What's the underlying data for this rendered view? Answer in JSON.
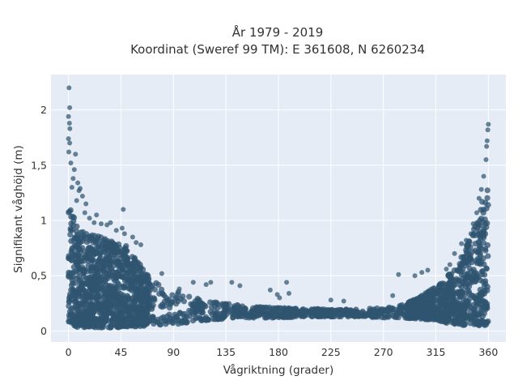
{
  "chart_data": {
    "type": "scatter",
    "title": "År 1979 - 2019",
    "subtitle": "Koordinat (Sweref 99 TM): E 361608, N 6260234",
    "xlabel": "Vågriktning (grader)",
    "ylabel": "Signifikant våghöjd (m)",
    "xlim": [
      -15,
      375
    ],
    "ylim": [
      -0.1,
      2.32
    ],
    "xticks": [
      0,
      45,
      90,
      135,
      180,
      225,
      270,
      315,
      360
    ],
    "xtick_labels": [
      "0",
      "45",
      "90",
      "135",
      "180",
      "225",
      "270",
      "315",
      "360"
    ],
    "yticks": [
      0,
      0.5,
      1,
      1.5,
      2
    ],
    "ytick_labels": [
      "0",
      "0,5",
      "1",
      "1,5",
      "2"
    ],
    "grid": true,
    "marker_color": "#2f5470",
    "background_color": "#e5ecf6",
    "density_profile": {
      "direction": [
        0,
        5,
        10,
        20,
        30,
        40,
        50,
        60,
        70,
        80,
        90,
        100,
        110,
        120,
        135,
        150,
        165,
        180,
        200,
        225,
        250,
        270,
        285,
        300,
        315,
        325,
        335,
        340,
        345,
        350,
        355,
        360
      ],
      "upper_height": [
        1.2,
        1.02,
        0.9,
        0.88,
        0.84,
        0.8,
        0.77,
        0.62,
        0.48,
        0.42,
        0.38,
        0.33,
        0.3,
        0.27,
        0.25,
        0.23,
        0.22,
        0.21,
        0.2,
        0.2,
        0.2,
        0.21,
        0.23,
        0.3,
        0.4,
        0.5,
        0.62,
        0.75,
        0.85,
        1.0,
        1.2,
        1.35
      ],
      "lower_height": [
        0.05,
        0.04,
        0.03,
        0.03,
        0.03,
        0.03,
        0.04,
        0.04,
        0.05,
        0.05,
        0.06,
        0.07,
        0.08,
        0.1,
        0.11,
        0.12,
        0.12,
        0.12,
        0.13,
        0.13,
        0.13,
        0.12,
        0.12,
        0.11,
        0.1,
        0.07,
        0.06,
        0.05,
        0.05,
        0.05,
        0.05,
        0.05
      ]
    },
    "outliers": [
      {
        "x": 0.5,
        "y": 2.2
      },
      {
        "x": 1,
        "y": 2.02
      },
      {
        "x": 0,
        "y": 1.94
      },
      {
        "x": 0.8,
        "y": 1.88
      },
      {
        "x": 1.2,
        "y": 1.83
      },
      {
        "x": 0,
        "y": 1.74
      },
      {
        "x": 1,
        "y": 1.7
      },
      {
        "x": 0.3,
        "y": 1.62
      },
      {
        "x": 2,
        "y": 1.52
      },
      {
        "x": 6,
        "y": 1.6
      },
      {
        "x": 5,
        "y": 1.46
      },
      {
        "x": 4,
        "y": 1.38
      },
      {
        "x": 8,
        "y": 1.34
      },
      {
        "x": 10,
        "y": 1.29
      },
      {
        "x": 12,
        "y": 1.22
      },
      {
        "x": 9,
        "y": 1.27
      },
      {
        "x": 3,
        "y": 1.3
      },
      {
        "x": 7,
        "y": 1.18
      },
      {
        "x": 15,
        "y": 1.15
      },
      {
        "x": 14,
        "y": 1.07
      },
      {
        "x": 18,
        "y": 1.02
      },
      {
        "x": 24,
        "y": 1.05
      },
      {
        "x": 22,
        "y": 0.98
      },
      {
        "x": 28,
        "y": 0.97
      },
      {
        "x": 33,
        "y": 0.96
      },
      {
        "x": 36,
        "y": 0.98
      },
      {
        "x": 47,
        "y": 1.1
      },
      {
        "x": 41,
        "y": 0.91
      },
      {
        "x": 46,
        "y": 0.93
      },
      {
        "x": 58,
        "y": 0.8
      },
      {
        "x": 48,
        "y": 0.88
      },
      {
        "x": 55,
        "y": 0.85
      },
      {
        "x": 62,
        "y": 0.78
      },
      {
        "x": 80,
        "y": 0.52
      },
      {
        "x": 95,
        "y": 0.38
      },
      {
        "x": 107,
        "y": 0.44
      },
      {
        "x": 118,
        "y": 0.42
      },
      {
        "x": 122,
        "y": 0.44
      },
      {
        "x": 140,
        "y": 0.44
      },
      {
        "x": 147,
        "y": 0.41
      },
      {
        "x": 173,
        "y": 0.37
      },
      {
        "x": 181,
        "y": 0.3
      },
      {
        "x": 187,
        "y": 0.44
      },
      {
        "x": 189,
        "y": 0.34
      },
      {
        "x": 179,
        "y": 0.33
      },
      {
        "x": 225,
        "y": 0.28
      },
      {
        "x": 236,
        "y": 0.27
      },
      {
        "x": 278,
        "y": 0.32
      },
      {
        "x": 283,
        "y": 0.51
      },
      {
        "x": 297,
        "y": 0.5
      },
      {
        "x": 303,
        "y": 0.53
      },
      {
        "x": 308,
        "y": 0.55
      },
      {
        "x": 324,
        "y": 0.56
      },
      {
        "x": 331,
        "y": 0.7
      },
      {
        "x": 337,
        "y": 0.79
      },
      {
        "x": 341,
        "y": 0.82
      },
      {
        "x": 343,
        "y": 0.8
      },
      {
        "x": 345,
        "y": 0.88
      },
      {
        "x": 347,
        "y": 0.97
      },
      {
        "x": 350,
        "y": 1.07
      },
      {
        "x": 352,
        "y": 1.2
      },
      {
        "x": 354,
        "y": 1.28
      },
      {
        "x": 356,
        "y": 1.4
      },
      {
        "x": 358,
        "y": 1.55
      },
      {
        "x": 358.5,
        "y": 1.67
      },
      {
        "x": 359,
        "y": 1.72
      },
      {
        "x": 359.5,
        "y": 1.82
      },
      {
        "x": 360,
        "y": 1.87
      },
      {
        "x": 354,
        "y": 0.95
      },
      {
        "x": 349,
        "y": 0.86
      },
      {
        "x": 327,
        "y": 0.6
      }
    ]
  }
}
